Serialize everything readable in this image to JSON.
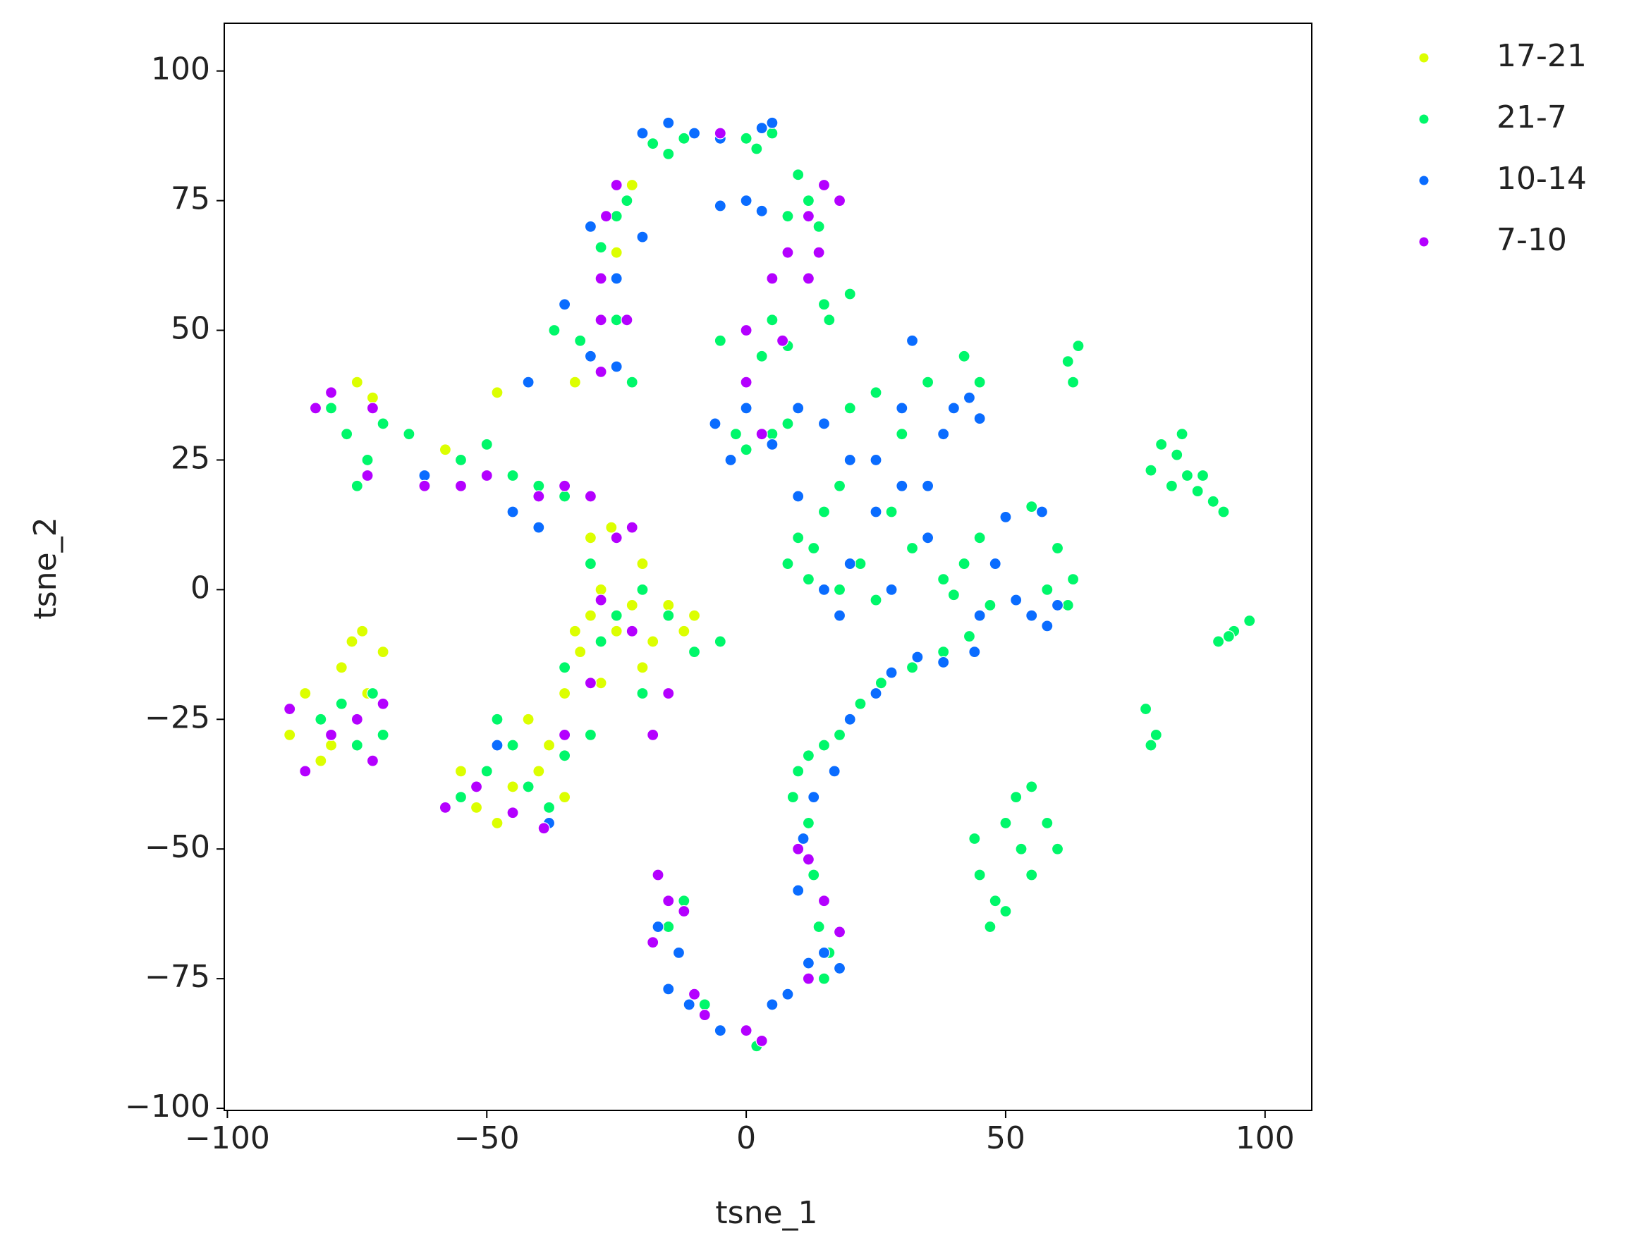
{
  "chart_data": {
    "type": "scatter",
    "x_label": "tsne_1",
    "y_label": "tsne_2",
    "xlim": [
      -100.6,
      109
    ],
    "ylim": [
      -100.4,
      109.2
    ],
    "xticks": [
      {
        "value": -100,
        "label": "−100"
      },
      {
        "value": -50,
        "label": "−50"
      },
      0,
      50,
      100
    ],
    "yticks": [
      {
        "value": -100,
        "label": "−100"
      },
      {
        "value": -75,
        "label": "−75"
      },
      {
        "value": -50,
        "label": "−50"
      },
      {
        "value": -25,
        "label": "−25"
      },
      0,
      25,
      50,
      75,
      100
    ],
    "legend": "outside-upper-right",
    "series": [
      {
        "name": "17-21",
        "color": "#dcff00",
        "x": [
          -85,
          -88,
          -82,
          -78,
          -76,
          -74,
          -70,
          -73,
          -80,
          -55,
          -52,
          -48,
          -45,
          -40,
          -38,
          -42,
          -35,
          -32,
          -30,
          -28,
          -25,
          -22,
          -18,
          -15,
          -12,
          -10,
          -20,
          -28,
          -33,
          -30,
          -26,
          -20,
          -35,
          -75,
          -72,
          -58,
          -48,
          -33,
          -25,
          -22
        ],
        "y": [
          -20,
          -28,
          -33,
          -15,
          -10,
          -8,
          -12,
          -20,
          -30,
          -35,
          -42,
          -45,
          -38,
          -35,
          -30,
          -25,
          -20,
          -12,
          -5,
          0,
          -8,
          -3,
          -10,
          -3,
          -8,
          -5,
          -15,
          -18,
          -8,
          10,
          12,
          5,
          -40,
          40,
          37,
          27,
          38,
          40,
          65,
          78
        ]
      },
      {
        "name": "21-7",
        "color": "#00f76a",
        "x": [
          78,
          80,
          83,
          85,
          87,
          90,
          92,
          82,
          84,
          88,
          91,
          94,
          97,
          93,
          77,
          79,
          78,
          62,
          63,
          64,
          45,
          48,
          50,
          52,
          55,
          58,
          60,
          55,
          50,
          47,
          53,
          44,
          38,
          42,
          45,
          50,
          55,
          60,
          63,
          62,
          58,
          47,
          40,
          43,
          38,
          32,
          26,
          22,
          18,
          15,
          12,
          10,
          9,
          12,
          13,
          14,
          16,
          15,
          10,
          13,
          15,
          18,
          20,
          25,
          30,
          35,
          42,
          45,
          28,
          22,
          18,
          25,
          32,
          8,
          12,
          -2,
          0,
          5,
          8,
          -5,
          0,
          5,
          8,
          3,
          8,
          12,
          15,
          10,
          14,
          15,
          20,
          16,
          2,
          5,
          0,
          -18,
          -15,
          -12,
          -28,
          -25,
          -23,
          -45,
          -50,
          -55,
          -42,
          -38,
          -35,
          -48,
          -30,
          -28,
          -25,
          -20,
          -15,
          -30,
          -35,
          -20,
          -10,
          -5,
          -82,
          -78,
          -75,
          -72,
          -70,
          -80,
          -77,
          -73,
          -75,
          -70,
          -65,
          -55,
          -50,
          -45,
          -40,
          -35,
          -37,
          -32,
          -25,
          -22,
          -12,
          -15,
          -10,
          -8,
          2
        ],
        "y": [
          23,
          28,
          26,
          22,
          19,
          17,
          15,
          20,
          30,
          22,
          -10,
          -8,
          -6,
          -9,
          -23,
          -28,
          -30,
          44,
          40,
          47,
          -55,
          -60,
          -45,
          -40,
          -38,
          -45,
          -50,
          -55,
          -62,
          -65,
          -50,
          -48,
          2,
          5,
          10,
          14,
          16,
          8,
          2,
          -3,
          0,
          -3,
          -1,
          -9,
          -12,
          -15,
          -18,
          -22,
          -28,
          -30,
          -32,
          -35,
          -40,
          -45,
          -55,
          -65,
          -70,
          -75,
          10,
          8,
          15,
          20,
          35,
          38,
          30,
          40,
          45,
          40,
          15,
          5,
          0,
          -2,
          8,
          5,
          2,
          30,
          27,
          30,
          32,
          48,
          50,
          52,
          47,
          45,
          72,
          75,
          78,
          80,
          70,
          55,
          57,
          52,
          85,
          88,
          87,
          86,
          84,
          87,
          66,
          72,
          75,
          -30,
          -35,
          -40,
          -38,
          -42,
          -32,
          -25,
          -28,
          -10,
          -5,
          0,
          -5,
          5,
          -15,
          -20,
          -12,
          -10,
          -25,
          -22,
          -30,
          -20,
          -28,
          35,
          30,
          25,
          20,
          32,
          30,
          25,
          28,
          22,
          20,
          18,
          50,
          48,
          52,
          40,
          -60,
          -65,
          -78,
          -80,
          -88
        ]
      },
      {
        "name": "10-14",
        "color": "#0a6cff",
        "x": [
          -20,
          -15,
          -10,
          -5,
          3,
          5,
          -5,
          0,
          3,
          -30,
          -25,
          -20,
          -30,
          -25,
          -35,
          -6,
          -3,
          0,
          5,
          10,
          15,
          20,
          25,
          30,
          32,
          35,
          38,
          40,
          43,
          45,
          30,
          25,
          20,
          15,
          35,
          28,
          18,
          10,
          48,
          52,
          55,
          58,
          60,
          50,
          57,
          45,
          44,
          38,
          33,
          28,
          25,
          20,
          17,
          13,
          11,
          10,
          12,
          15,
          18,
          8,
          5,
          -48,
          -38,
          -40,
          -45,
          -62,
          -42,
          -17,
          -13,
          -15,
          -11,
          -5
        ],
        "y": [
          88,
          90,
          88,
          87,
          89,
          90,
          74,
          75,
          73,
          70,
          60,
          68,
          45,
          43,
          55,
          32,
          25,
          35,
          28,
          35,
          32,
          25,
          25,
          35,
          48,
          20,
          30,
          35,
          37,
          33,
          20,
          15,
          5,
          0,
          10,
          0,
          -5,
          18,
          5,
          -2,
          -5,
          -7,
          -3,
          14,
          15,
          -5,
          -12,
          -14,
          -13,
          -16,
          -20,
          -25,
          -35,
          -40,
          -48,
          -58,
          -72,
          -70,
          -73,
          -78,
          -80,
          -30,
          -45,
          12,
          15,
          22,
          40,
          -65,
          -70,
          -77,
          -80,
          -85
        ]
      },
      {
        "name": "7-10",
        "color": "#b400ff",
        "x": [
          -88,
          -85,
          -80,
          -72,
          -75,
          -70,
          -58,
          -52,
          -45,
          -39,
          -35,
          -30,
          -28,
          -22,
          -18,
          -15,
          -25,
          -22,
          -30,
          -35,
          -40,
          -55,
          -62,
          -83,
          -80,
          -72,
          -73,
          -50,
          -28,
          -23,
          -28,
          -25,
          -27,
          -28,
          -17,
          -15,
          -18,
          -12,
          -10,
          -8,
          0,
          3,
          10,
          12,
          15,
          18,
          12,
          5,
          0,
          7,
          12,
          14,
          15,
          18,
          -5,
          8,
          12,
          3,
          0
        ],
        "y": [
          -23,
          -35,
          -28,
          -33,
          -25,
          -22,
          -42,
          -38,
          -43,
          -46,
          -28,
          -18,
          -2,
          -8,
          -28,
          -20,
          10,
          12,
          18,
          20,
          18,
          20,
          20,
          35,
          38,
          35,
          22,
          22,
          52,
          52,
          42,
          78,
          72,
          60,
          -55,
          -60,
          -68,
          -62,
          -78,
          -82,
          -85,
          -87,
          -50,
          -52,
          -60,
          -66,
          -75,
          60,
          50,
          48,
          72,
          65,
          78,
          75,
          88,
          65,
          60,
          30,
          40
        ]
      }
    ]
  }
}
